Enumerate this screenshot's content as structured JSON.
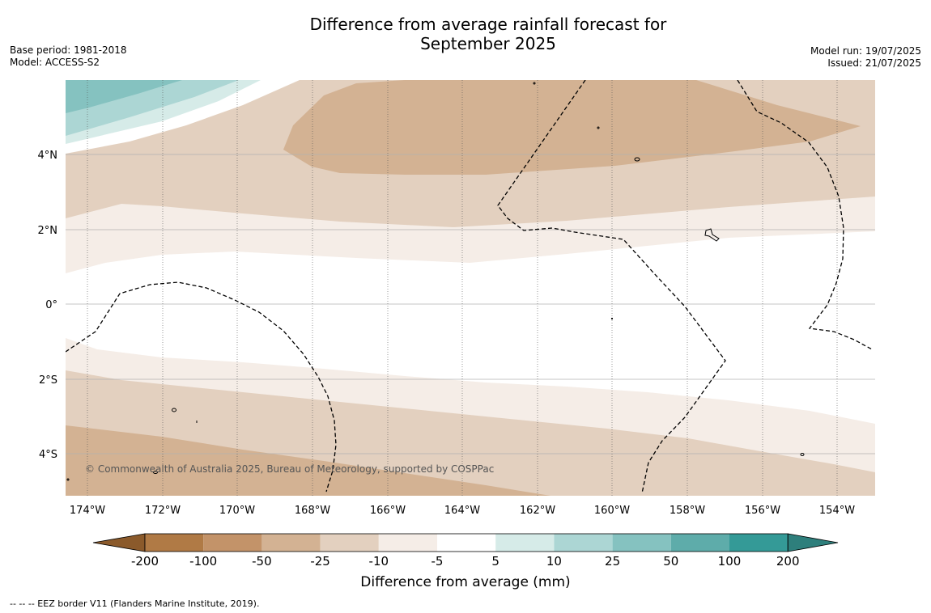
{
  "title_line1": "Difference from average rainfall forecast for",
  "title_line2": "September 2025",
  "base_period": "Base period: 1981-2018",
  "model": "Model: ACCESS-S2",
  "model_run": "Model run: 19/07/2025",
  "issued": "Issued: 21/07/2025",
  "copyright": "© Commonwealth of Australia 2025, Bureau of Meteorology, supported by COSPPac",
  "footer_note": "--  --  -- EEZ border V11 (Flanders Marine Institute, 2019).",
  "map": {
    "lon_labels": [
      "174°W",
      "172°W",
      "170°W",
      "168°W",
      "166°W",
      "164°W",
      "162°W",
      "160°W",
      "158°W",
      "156°W",
      "154°W"
    ],
    "lat_labels": [
      "4°N",
      "2°N",
      "0°",
      "2°S",
      "4°S"
    ],
    "lon_range": [
      -174.6,
      -153.0
    ],
    "lat_range": [
      -5.2,
      6.0
    ]
  },
  "colorbar": {
    "title": "Difference from average (mm)",
    "tick_labels": [
      "-200",
      "-100",
      "-50",
      "-25",
      "-10",
      "-5",
      "5",
      "10",
      "25",
      "50",
      "100",
      "200"
    ],
    "colors": [
      "#8b5a2b",
      "#b07a45",
      "#c39369",
      "#d3b293",
      "#e3d0bf",
      "#f5ede7",
      "#ffffff",
      "#d6ebe8",
      "#acd6d4",
      "#85c2c0",
      "#5eacaa",
      "#349a97",
      "#2e7f7c"
    ],
    "extend": "both"
  }
}
